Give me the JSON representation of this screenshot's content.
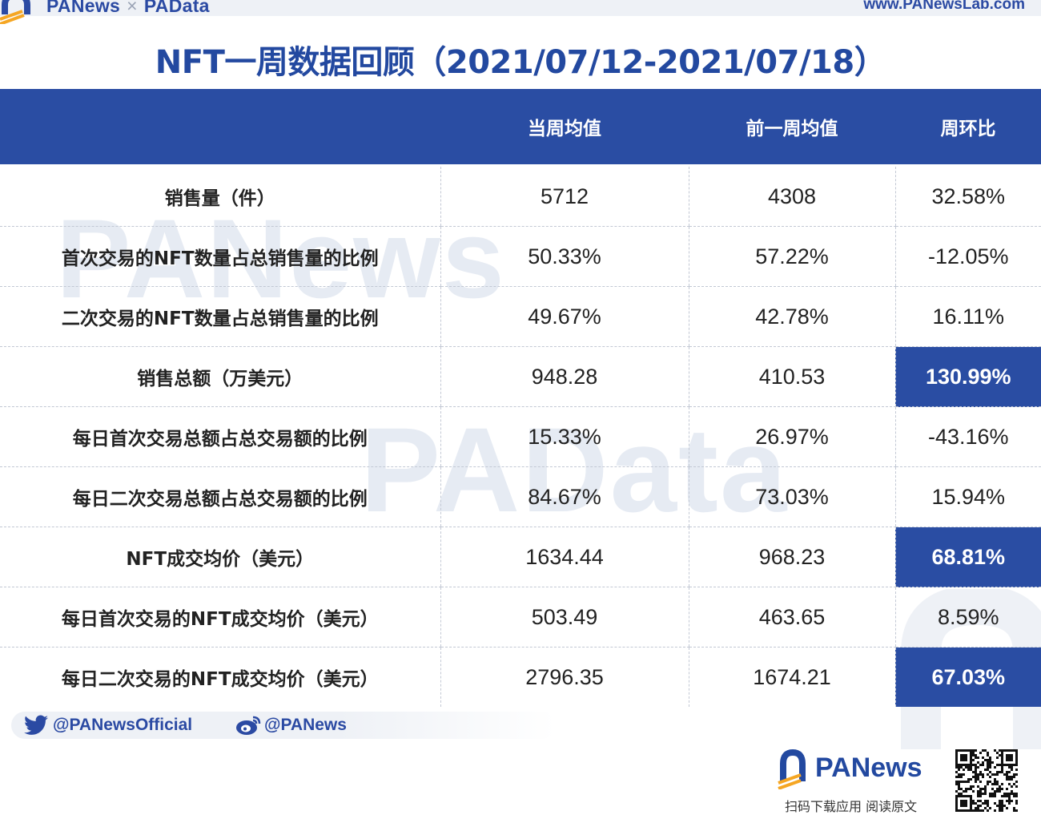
{
  "header": {
    "brand": "PANews",
    "separator": "×",
    "brand2": "PAData",
    "url": "www.PANewsLab.com"
  },
  "title": "NFT一周数据回顾（2021/07/12-2021/07/18）",
  "watermarks": [
    "PANews",
    "PAData"
  ],
  "table": {
    "columns": [
      "",
      "当周均值",
      "前一周均值",
      "周环比"
    ],
    "rows": [
      {
        "metric": "销售量（件）",
        "current": "5712",
        "previous": "4308",
        "change": "32.58%",
        "highlight": false
      },
      {
        "metric": "首次交易的NFT数量占总销售量的比例",
        "current": "50.33%",
        "previous": "57.22%",
        "change": "-12.05%",
        "highlight": false
      },
      {
        "metric": "二次交易的NFT数量占总销售量的比例",
        "current": "49.67%",
        "previous": "42.78%",
        "change": "16.11%",
        "highlight": false
      },
      {
        "metric": "销售总额（万美元）",
        "current": "948.28",
        "previous": "410.53",
        "change": "130.99%",
        "highlight": true
      },
      {
        "metric": "每日首次交易总额占总交易额的比例",
        "current": "15.33%",
        "previous": "26.97%",
        "change": "-43.16%",
        "highlight": false
      },
      {
        "metric": "每日二次交易总额占总交易额的比例",
        "current": "84.67%",
        "previous": "73.03%",
        "change": "15.94%",
        "highlight": false
      },
      {
        "metric": "NFT成交均价（美元）",
        "current": "1634.44",
        "previous": "968.23",
        "change": "68.81%",
        "highlight": true
      },
      {
        "metric": "每日首次交易的NFT成交均价（美元）",
        "current": "503.49",
        "previous": "463.65",
        "change": "8.59%",
        "highlight": false
      },
      {
        "metric": "每日二次交易的NFT成交均价（美元）",
        "current": "2796.35",
        "previous": "1674.21",
        "change": "67.03%",
        "highlight": true
      }
    ]
  },
  "footer": {
    "twitter": "@PANewsOfficial",
    "weibo": "@PANews",
    "logo_text": "PANews",
    "caption": "扫码下载应用 阅读原文"
  },
  "colors": {
    "brand_blue": "#2a4da3",
    "title_blue": "#2349a0",
    "accent_orange": "#f5a623",
    "watermark": "#e6ebf3"
  },
  "icons": [
    "panews-logo-icon",
    "twitter-icon",
    "weibo-icon",
    "qr-code-icon"
  ]
}
